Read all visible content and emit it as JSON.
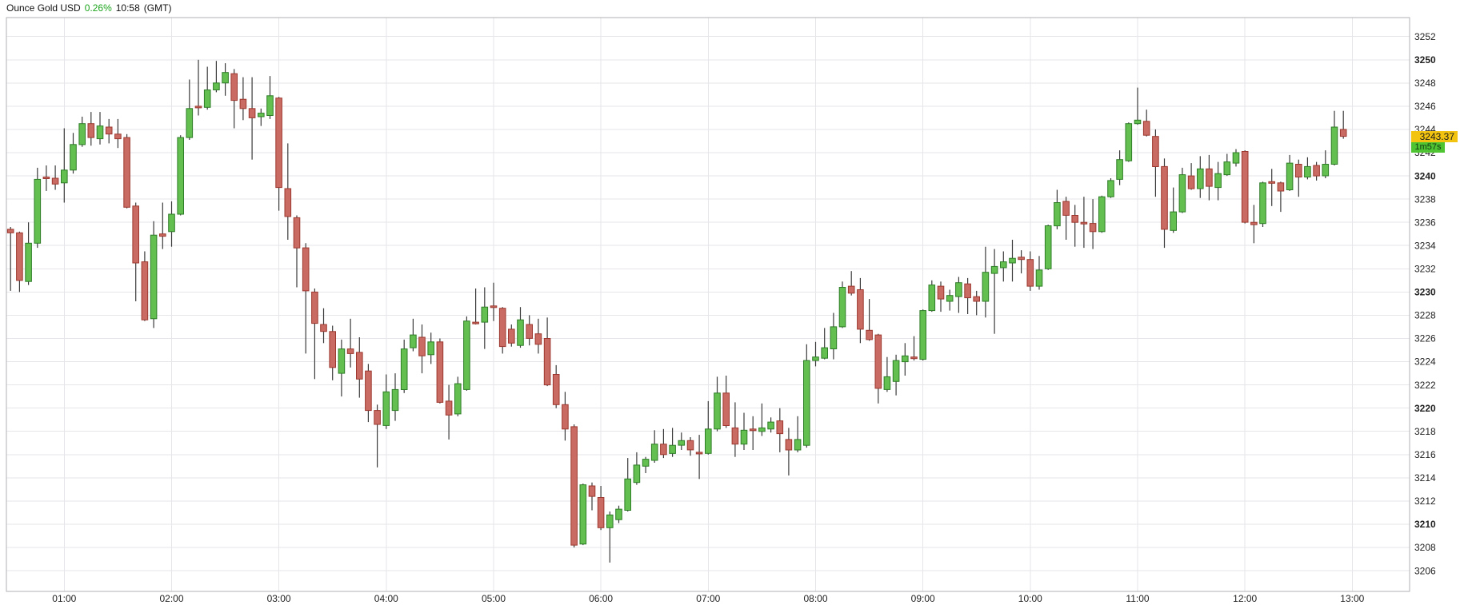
{
  "title": {
    "instrument": "Ounce Gold USD",
    "change_percent": "0.26%",
    "time": "10:58",
    "timezone": "(GMT)"
  },
  "price_axis": {
    "last_price_label": "3243.37",
    "countdown_label": "1m57s",
    "tick_min": 3206,
    "tick_max": 3252,
    "tick_step": 2,
    "bold_ticks": [
      3210,
      3220,
      3230,
      3240,
      3250
    ]
  },
  "time_axis": {
    "ticks": [
      "01:00",
      "02:00",
      "03:00",
      "04:00",
      "05:00",
      "06:00",
      "07:00",
      "08:00",
      "09:00",
      "10:00",
      "11:00",
      "12:00",
      "13:00"
    ]
  },
  "colors": {
    "up_fill": "#63bf4f",
    "up_border": "#2e7d27",
    "down_fill": "#c96b62",
    "down_border": "#9c382f",
    "wick": "#3a3a3a",
    "grid": "#e6e6ea",
    "plot_border": "#b2b2b6",
    "label_text": "#222222",
    "change_green": "#1ca41c",
    "price_badge_bg": "#f2c411",
    "countdown_badge_bg": "#4ec432"
  },
  "chart_data": {
    "type": "candlestick",
    "interval": "5m",
    "title": "Ounce Gold USD",
    "ylim_gridlines": [
      3206,
      3252
    ],
    "grid": true,
    "last_price": 3243.37,
    "candles": [
      [
        "00:30",
        3235.4,
        3235.6,
        3230.1,
        3235.1
      ],
      [
        "00:35",
        3235.1,
        3235.2,
        3230.0,
        3231.0
      ],
      [
        "00:40",
        3230.9,
        3236.0,
        3230.6,
        3234.2
      ],
      [
        "00:45",
        3234.2,
        3240.7,
        3233.8,
        3239.7
      ],
      [
        "00:50",
        3239.9,
        3240.9,
        3238.7,
        3239.8
      ],
      [
        "00:55",
        3239.8,
        3240.9,
        3238.8,
        3239.3
      ],
      [
        "01:00",
        3239.4,
        3244.1,
        3237.7,
        3240.5
      ],
      [
        "01:05",
        3240.5,
        3243.7,
        3240.2,
        3242.7
      ],
      [
        "01:10",
        3242.7,
        3245.1,
        3242.5,
        3244.5
      ],
      [
        "01:15",
        3244.5,
        3245.5,
        3242.6,
        3243.3
      ],
      [
        "01:20",
        3243.2,
        3245.5,
        3242.7,
        3244.3
      ],
      [
        "01:25",
        3244.2,
        3244.9,
        3242.8,
        3243.6
      ],
      [
        "01:30",
        3243.6,
        3244.9,
        3242.4,
        3243.2
      ],
      [
        "01:35",
        3243.3,
        3243.6,
        3237.2,
        3237.3
      ],
      [
        "01:40",
        3237.4,
        3237.7,
        3229.2,
        3232.5
      ],
      [
        "01:45",
        3232.6,
        3233.5,
        3227.5,
        3227.6
      ],
      [
        "01:50",
        3227.7,
        3236.1,
        3226.9,
        3234.9
      ],
      [
        "01:55",
        3235.0,
        3237.7,
        3233.7,
        3234.8
      ],
      [
        "02:00",
        3235.2,
        3237.8,
        3233.9,
        3236.7
      ],
      [
        "02:05",
        3236.7,
        3243.5,
        3236.6,
        3243.3
      ],
      [
        "02:10",
        3243.3,
        3248.3,
        3243.1,
        3245.8
      ],
      [
        "02:15",
        3246.0,
        3250.0,
        3245.2,
        3245.9
      ],
      [
        "02:20",
        3245.9,
        3249.4,
        3245.7,
        3247.4
      ],
      [
        "02:25",
        3247.4,
        3249.9,
        3247.2,
        3248.0
      ],
      [
        "02:30",
        3248.0,
        3249.7,
        3246.9,
        3248.9
      ],
      [
        "02:35",
        3248.8,
        3249.2,
        3244.1,
        3246.5
      ],
      [
        "02:40",
        3246.6,
        3248.5,
        3244.8,
        3245.8
      ],
      [
        "02:45",
        3245.8,
        3248.5,
        3241.4,
        3245.0
      ],
      [
        "02:50",
        3245.1,
        3245.8,
        3244.3,
        3245.4
      ],
      [
        "02:55",
        3245.2,
        3248.6,
        3244.9,
        3246.9
      ],
      [
        "03:00",
        3246.7,
        3246.8,
        3237.0,
        3239.0
      ],
      [
        "03:05",
        3238.9,
        3242.8,
        3234.5,
        3236.5
      ],
      [
        "03:10",
        3236.4,
        3236.6,
        3230.4,
        3233.8
      ],
      [
        "03:15",
        3233.8,
        3234.2,
        3224.7,
        3230.1
      ],
      [
        "03:20",
        3230.0,
        3230.3,
        3222.5,
        3227.3
      ],
      [
        "03:25",
        3227.2,
        3228.6,
        3225.6,
        3226.6
      ],
      [
        "03:30",
        3226.6,
        3227.1,
        3222.4,
        3223.5
      ],
      [
        "03:35",
        3223.0,
        3225.9,
        3221.0,
        3225.1
      ],
      [
        "03:40",
        3225.1,
        3227.7,
        3223.5,
        3224.7
      ],
      [
        "03:45",
        3224.8,
        3226.1,
        3220.9,
        3222.5
      ],
      [
        "03:50",
        3223.2,
        3223.8,
        3218.8,
        3219.8
      ],
      [
        "03:55",
        3219.8,
        3220.3,
        3214.9,
        3218.6
      ],
      [
        "04:00",
        3218.5,
        3222.9,
        3218.2,
        3221.4
      ],
      [
        "04:05",
        3219.8,
        3223.0,
        3218.9,
        3221.6
      ],
      [
        "04:10",
        3221.6,
        3225.9,
        3221.3,
        3225.1
      ],
      [
        "04:15",
        3225.2,
        3227.7,
        3224.9,
        3226.3
      ],
      [
        "04:20",
        3226.1,
        3227.2,
        3223.0,
        3224.5
      ],
      [
        "04:25",
        3224.6,
        3226.5,
        3223.8,
        3225.7
      ],
      [
        "04:30",
        3225.7,
        3226.0,
        3220.4,
        3220.5
      ],
      [
        "04:35",
        3220.6,
        3222.0,
        3217.3,
        3219.4
      ],
      [
        "04:40",
        3219.5,
        3222.7,
        3219.3,
        3222.1
      ],
      [
        "04:45",
        3221.6,
        3227.9,
        3221.5,
        3227.5
      ],
      [
        "04:50",
        3227.4,
        3230.3,
        3227.2,
        3227.3
      ],
      [
        "04:55",
        3227.4,
        3230.4,
        3225.1,
        3228.7
      ],
      [
        "05:00",
        3228.8,
        3230.8,
        3227.5,
        3228.7
      ],
      [
        "05:05",
        3228.6,
        3228.7,
        3224.7,
        3225.3
      ],
      [
        "05:10",
        3226.8,
        3227.2,
        3225.3,
        3225.6
      ],
      [
        "05:15",
        3225.4,
        3228.7,
        3225.2,
        3227.6
      ],
      [
        "05:20",
        3227.2,
        3228.0,
        3225.4,
        3226.0
      ],
      [
        "05:25",
        3226.4,
        3227.7,
        3224.7,
        3225.5
      ],
      [
        "05:30",
        3226.0,
        3227.8,
        3221.9,
        3222.0
      ],
      [
        "05:35",
        3222.9,
        3223.7,
        3220.0,
        3220.3
      ],
      [
        "05:40",
        3220.3,
        3221.4,
        3217.2,
        3218.2
      ],
      [
        "05:45",
        3218.4,
        3218.6,
        3208.0,
        3208.2
      ],
      [
        "05:50",
        3208.3,
        3213.5,
        3208.2,
        3213.4
      ],
      [
        "05:55",
        3213.3,
        3213.6,
        3211.2,
        3212.4
      ],
      [
        "06:00",
        3212.3,
        3213.3,
        3209.5,
        3209.7
      ],
      [
        "06:05",
        3209.7,
        3211.1,
        3206.7,
        3210.8
      ],
      [
        "06:10",
        3210.4,
        3211.6,
        3210.1,
        3211.3
      ],
      [
        "06:15",
        3211.2,
        3215.7,
        3211.1,
        3213.9
      ],
      [
        "06:20",
        3213.6,
        3216.2,
        3213.4,
        3215.1
      ],
      [
        "06:25",
        3215.0,
        3215.8,
        3214.4,
        3215.6
      ],
      [
        "06:30",
        3215.5,
        3218.1,
        3215.3,
        3216.9
      ],
      [
        "06:35",
        3216.9,
        3218.2,
        3215.7,
        3216.0
      ],
      [
        "06:40",
        3216.1,
        3218.3,
        3215.8,
        3216.8
      ],
      [
        "06:45",
        3216.8,
        3217.9,
        3216.4,
        3217.2
      ],
      [
        "06:50",
        3217.2,
        3217.5,
        3215.9,
        3216.4
      ],
      [
        "06:55",
        3216.2,
        3217.7,
        3213.9,
        3216.1
      ],
      [
        "07:00",
        3216.1,
        3220.6,
        3216.0,
        3218.2
      ],
      [
        "07:05",
        3218.2,
        3222.7,
        3218.0,
        3221.3
      ],
      [
        "07:10",
        3221.3,
        3222.8,
        3218.3,
        3218.5
      ],
      [
        "07:15",
        3218.3,
        3220.5,
        3215.8,
        3216.9
      ],
      [
        "07:20",
        3216.9,
        3219.6,
        3216.4,
        3218.1
      ],
      [
        "07:25",
        3218.2,
        3219.3,
        3216.4,
        3218.1
      ],
      [
        "07:30",
        3218.0,
        3220.4,
        3217.6,
        3218.3
      ],
      [
        "07:35",
        3218.2,
        3219.2,
        3217.9,
        3218.8
      ],
      [
        "07:40",
        3218.9,
        3220.0,
        3216.2,
        3217.8
      ],
      [
        "07:45",
        3217.3,
        3218.3,
        3214.2,
        3216.4
      ],
      [
        "07:50",
        3216.4,
        3219.3,
        3216.2,
        3217.3
      ],
      [
        "07:55",
        3216.8,
        3225.5,
        3216.6,
        3224.1
      ],
      [
        "08:00",
        3224.1,
        3225.7,
        3223.6,
        3224.4
      ],
      [
        "08:05",
        3224.3,
        3226.9,
        3224.2,
        3225.2
      ],
      [
        "08:10",
        3225.1,
        3228.2,
        3224.2,
        3227.0
      ],
      [
        "08:15",
        3227.0,
        3230.9,
        3226.9,
        3230.4
      ],
      [
        "08:20",
        3230.5,
        3231.8,
        3229.7,
        3229.9
      ],
      [
        "08:25",
        3230.2,
        3231.2,
        3225.6,
        3226.8
      ],
      [
        "08:30",
        3226.7,
        3229.4,
        3225.8,
        3225.9
      ],
      [
        "08:35",
        3226.3,
        3226.4,
        3220.4,
        3221.7
      ],
      [
        "08:40",
        3221.6,
        3224.4,
        3221.4,
        3222.7
      ],
      [
        "08:45",
        3222.3,
        3224.6,
        3221.1,
        3224.1
      ],
      [
        "08:50",
        3224.0,
        3225.6,
        3222.8,
        3224.5
      ],
      [
        "08:55",
        3224.4,
        3226.2,
        3224.1,
        3224.3
      ],
      [
        "09:00",
        3224.2,
        3228.5,
        3224.1,
        3228.4
      ],
      [
        "09:05",
        3228.4,
        3231.0,
        3228.3,
        3230.6
      ],
      [
        "09:10",
        3230.5,
        3230.9,
        3228.3,
        3229.4
      ],
      [
        "09:15",
        3229.2,
        3230.2,
        3228.4,
        3229.7
      ],
      [
        "09:20",
        3229.6,
        3231.3,
        3228.2,
        3230.8
      ],
      [
        "09:25",
        3230.7,
        3231.2,
        3228.1,
        3229.5
      ],
      [
        "09:30",
        3229.6,
        3230.1,
        3228.0,
        3229.2
      ],
      [
        "09:35",
        3229.2,
        3233.9,
        3227.8,
        3231.7
      ],
      [
        "09:40",
        3231.6,
        3233.7,
        3226.4,
        3232.2
      ],
      [
        "09:45",
        3232.1,
        3233.5,
        3230.9,
        3232.6
      ],
      [
        "09:50",
        3232.5,
        3234.5,
        3230.9,
        3232.9
      ],
      [
        "09:55",
        3233.0,
        3233.6,
        3231.6,
        3232.8
      ],
      [
        "10:00",
        3232.8,
        3233.5,
        3230.1,
        3230.5
      ],
      [
        "10:05",
        3230.5,
        3233.1,
        3230.2,
        3231.9
      ],
      [
        "10:10",
        3232.0,
        3235.8,
        3231.9,
        3235.7
      ],
      [
        "10:15",
        3235.7,
        3238.8,
        3235.4,
        3237.7
      ],
      [
        "10:20",
        3237.8,
        3238.2,
        3234.5,
        3236.6
      ],
      [
        "10:25",
        3236.6,
        3237.5,
        3233.9,
        3236.0
      ],
      [
        "10:30",
        3236.0,
        3238.2,
        3233.8,
        3235.9
      ],
      [
        "10:35",
        3235.9,
        3238.0,
        3233.7,
        3235.2
      ],
      [
        "10:40",
        3235.2,
        3238.3,
        3235.1,
        3238.2
      ],
      [
        "10:45",
        3238.2,
        3239.8,
        3238.1,
        3239.6
      ],
      [
        "10:50",
        3239.7,
        3242.2,
        3239.2,
        3241.4
      ],
      [
        "10:55",
        3241.3,
        3244.6,
        3241.2,
        3244.5
      ],
      [
        "11:00",
        3244.5,
        3247.6,
        3244.4,
        3244.8
      ],
      [
        "11:05",
        3244.7,
        3245.7,
        3243.4,
        3243.5
      ],
      [
        "11:10",
        3243.4,
        3244.0,
        3238.2,
        3240.8
      ],
      [
        "11:15",
        3240.8,
        3241.5,
        3233.8,
        3235.4
      ],
      [
        "11:20",
        3235.3,
        3239.0,
        3235.1,
        3236.9
      ],
      [
        "11:25",
        3236.9,
        3240.7,
        3236.8,
        3240.1
      ],
      [
        "11:30",
        3240.0,
        3241.1,
        3238.8,
        3238.9
      ],
      [
        "11:35",
        3238.9,
        3241.7,
        3238.1,
        3240.6
      ],
      [
        "11:40",
        3240.6,
        3241.8,
        3237.9,
        3239.1
      ],
      [
        "11:45",
        3239.0,
        3241.2,
        3237.9,
        3240.2
      ],
      [
        "11:50",
        3240.1,
        3241.9,
        3240.0,
        3241.2
      ],
      [
        "11:55",
        3241.1,
        3242.3,
        3240.8,
        3242.0
      ],
      [
        "12:00",
        3242.1,
        3242.2,
        3235.9,
        3236.0
      ],
      [
        "12:05",
        3236.0,
        3237.5,
        3234.2,
        3235.8
      ],
      [
        "12:10",
        3235.9,
        3239.5,
        3235.6,
        3239.4
      ],
      [
        "12:15",
        3239.5,
        3240.6,
        3237.4,
        3239.4
      ],
      [
        "12:20",
        3239.4,
        3239.5,
        3236.9,
        3238.7
      ],
      [
        "12:25",
        3238.8,
        3241.8,
        3238.7,
        3241.1
      ],
      [
        "12:30",
        3241.0,
        3241.4,
        3238.2,
        3239.9
      ],
      [
        "12:35",
        3239.9,
        3241.6,
        3239.7,
        3240.8
      ],
      [
        "12:40",
        3240.9,
        3241.2,
        3239.6,
        3240.0
      ],
      [
        "12:45",
        3240.0,
        3242.2,
        3239.8,
        3241.0
      ],
      [
        "12:50",
        3241.0,
        3245.6,
        3240.9,
        3244.2
      ],
      [
        "12:55",
        3244.0,
        3245.6,
        3243.2,
        3243.4
      ]
    ]
  }
}
